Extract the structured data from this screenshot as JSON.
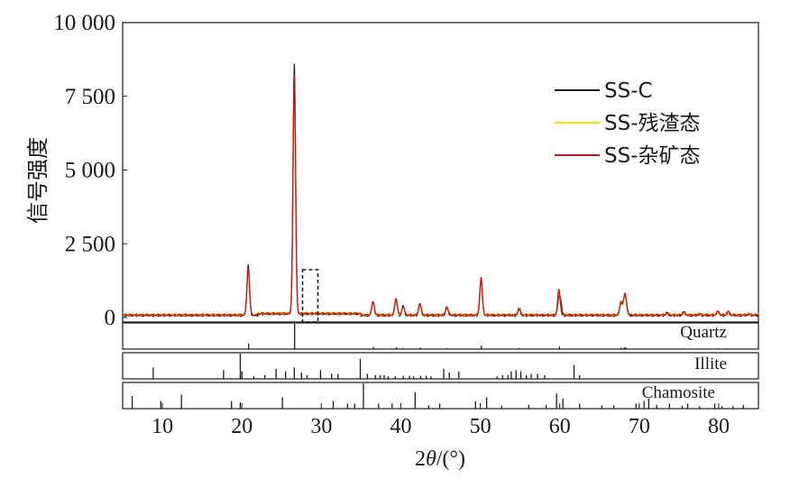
{
  "chart_data": {
    "type": "line",
    "xlabel": "2θ/(°)",
    "xlabel_parts": {
      "pre": "2",
      "theta": "θ",
      "post": "/(°)"
    },
    "ylabel": "信号强度",
    "xlim": [
      5,
      85
    ],
    "ylim": [
      0,
      10000
    ],
    "xticks": [
      10,
      20,
      30,
      40,
      50,
      60,
      70,
      80
    ],
    "xtick_labels": [
      "10",
      "20",
      "30",
      "40",
      "50",
      "60",
      "70",
      "80"
    ],
    "yticks": [
      0,
      2500,
      5000,
      7500,
      10000
    ],
    "ytick_labels": [
      "0",
      "2 500",
      "5 000",
      "7 500",
      "10 000"
    ],
    "legend_position": "top-right",
    "series": [
      {
        "name": "SS-C",
        "color": "#1a1a1a",
        "baseline": 75,
        "peaks": [
          [
            20.8,
            1750
          ],
          [
            26.6,
            8550
          ],
          [
            36.5,
            550
          ],
          [
            39.4,
            620
          ],
          [
            40.3,
            380
          ],
          [
            42.4,
            450
          ],
          [
            45.8,
            350
          ],
          [
            50.1,
            1250
          ],
          [
            54.9,
            300
          ],
          [
            59.9,
            600
          ],
          [
            60.1,
            400
          ],
          [
            67.7,
            500
          ],
          [
            68.1,
            450
          ],
          [
            68.3,
            550
          ],
          [
            73.5,
            150
          ],
          [
            75.6,
            180
          ],
          [
            77.6,
            120
          ],
          [
            79.9,
            200
          ],
          [
            81.2,
            200
          ],
          [
            83.8,
            120
          ]
        ]
      },
      {
        "name": "SS-残渣态",
        "color": "#f5e100",
        "baseline": 95,
        "peaks": [
          [
            20.8,
            1600
          ],
          [
            26.6,
            7600
          ],
          [
            36.5,
            500
          ],
          [
            39.4,
            600
          ],
          [
            40.3,
            350
          ],
          [
            42.4,
            430
          ],
          [
            45.8,
            330
          ],
          [
            50.1,
            1150
          ],
          [
            54.9,
            280
          ],
          [
            59.9,
            850
          ],
          [
            67.7,
            480
          ],
          [
            68.1,
            430
          ],
          [
            68.3,
            520
          ],
          [
            73.5,
            140
          ],
          [
            75.6,
            170
          ],
          [
            77.6,
            110
          ],
          [
            79.9,
            190
          ],
          [
            81.2,
            180
          ],
          [
            83.8,
            110
          ]
        ]
      },
      {
        "name": "SS-杂矿态",
        "color": "#cc1020",
        "baseline": 85,
        "peaks": [
          [
            20.8,
            1700
          ],
          [
            26.6,
            8150
          ],
          [
            36.5,
            520
          ],
          [
            39.4,
            650
          ],
          [
            40.3,
            380
          ],
          [
            42.4,
            470
          ],
          [
            45.8,
            360
          ],
          [
            50.1,
            1350
          ],
          [
            54.9,
            300
          ],
          [
            59.9,
            930
          ],
          [
            67.7,
            520
          ],
          [
            68.1,
            460
          ],
          [
            68.3,
            560
          ],
          [
            73.5,
            150
          ],
          [
            75.6,
            180
          ],
          [
            77.6,
            120
          ],
          [
            79.9,
            200
          ],
          [
            81.2,
            190
          ],
          [
            83.8,
            120
          ]
        ]
      }
    ],
    "reference_patterns": [
      {
        "name": "Quartz",
        "lines": [
          [
            20.86,
            0.22
          ],
          [
            26.64,
            1.0
          ],
          [
            36.54,
            0.08
          ],
          [
            39.47,
            0.08
          ],
          [
            40.29,
            0.04
          ],
          [
            42.45,
            0.06
          ],
          [
            45.79,
            0.04
          ],
          [
            50.14,
            0.14
          ],
          [
            54.87,
            0.04
          ],
          [
            59.96,
            0.1
          ],
          [
            64.0,
            0.02
          ],
          [
            67.74,
            0.06
          ],
          [
            68.14,
            0.07
          ],
          [
            68.31,
            0.06
          ],
          [
            73.46,
            0.02
          ],
          [
            75.65,
            0.03
          ],
          [
            77.67,
            0.02
          ],
          [
            79.87,
            0.03
          ],
          [
            81.14,
            0.03
          ],
          [
            81.49,
            0.02
          ],
          [
            83.8,
            0.02
          ]
        ]
      },
      {
        "name": "Illite",
        "lines": [
          [
            8.85,
            0.45
          ],
          [
            17.7,
            0.35
          ],
          [
            19.8,
            1.0
          ],
          [
            20.0,
            0.3
          ],
          [
            21.5,
            0.1
          ],
          [
            22.9,
            0.15
          ],
          [
            24.3,
            0.4
          ],
          [
            25.5,
            0.3
          ],
          [
            26.6,
            0.45
          ],
          [
            27.5,
            0.25
          ],
          [
            28.2,
            0.15
          ],
          [
            29.9,
            0.35
          ],
          [
            31.3,
            0.2
          ],
          [
            32.1,
            0.2
          ],
          [
            34.9,
            0.8
          ],
          [
            35.8,
            0.2
          ],
          [
            36.8,
            0.15
          ],
          [
            37.4,
            0.15
          ],
          [
            37.9,
            0.15
          ],
          [
            38.4,
            0.1
          ],
          [
            39.3,
            0.1
          ],
          [
            40.3,
            0.12
          ],
          [
            41.1,
            0.12
          ],
          [
            41.6,
            0.1
          ],
          [
            42.5,
            0.12
          ],
          [
            43.2,
            0.12
          ],
          [
            43.8,
            0.1
          ],
          [
            45.4,
            0.4
          ],
          [
            46.1,
            0.25
          ],
          [
            47.3,
            0.3
          ],
          [
            52.1,
            0.1
          ],
          [
            52.8,
            0.15
          ],
          [
            53.5,
            0.15
          ],
          [
            53.9,
            0.3
          ],
          [
            54.5,
            0.35
          ],
          [
            55.1,
            0.3
          ],
          [
            55.8,
            0.15
          ],
          [
            56.4,
            0.2
          ],
          [
            57.2,
            0.2
          ],
          [
            58.1,
            0.15
          ],
          [
            61.8,
            0.55
          ],
          [
            62.5,
            0.15
          ]
        ]
      },
      {
        "name": "Chamosite",
        "lines": [
          [
            6.2,
            0.5
          ],
          [
            9.8,
            0.3
          ],
          [
            12.4,
            0.55
          ],
          [
            18.7,
            0.3
          ],
          [
            19.8,
            0.25
          ],
          [
            25.1,
            0.45
          ],
          [
            31.5,
            0.3
          ],
          [
            33.3,
            0.2
          ],
          [
            34.2,
            0.2
          ],
          [
            35.3,
            1.0
          ],
          [
            37.2,
            0.2
          ],
          [
            38.9,
            0.2
          ],
          [
            41.8,
            0.65
          ],
          [
            43.5,
            0.12
          ],
          [
            44.9,
            0.2
          ],
          [
            49.4,
            0.3
          ],
          [
            50.8,
            0.45
          ],
          [
            52.7,
            0.12
          ],
          [
            56.1,
            0.15
          ],
          [
            58.3,
            0.15
          ],
          [
            59.6,
            0.6
          ],
          [
            60.4,
            0.4
          ],
          [
            62.5,
            0.2
          ],
          [
            65.3,
            0.12
          ],
          [
            66.8,
            0.12
          ],
          [
            69.6,
            0.2
          ],
          [
            70.6,
            0.3
          ],
          [
            71.2,
            0.4
          ],
          [
            72.2,
            0.15
          ],
          [
            73.8,
            0.2
          ],
          [
            75.4,
            0.12
          ],
          [
            76.1,
            0.2
          ],
          [
            77.6,
            0.1
          ],
          [
            79.5,
            0.2
          ],
          [
            80.4,
            0.1
          ],
          [
            81.8,
            0.1
          ],
          [
            83.1,
            0.15
          ]
        ]
      }
    ]
  }
}
